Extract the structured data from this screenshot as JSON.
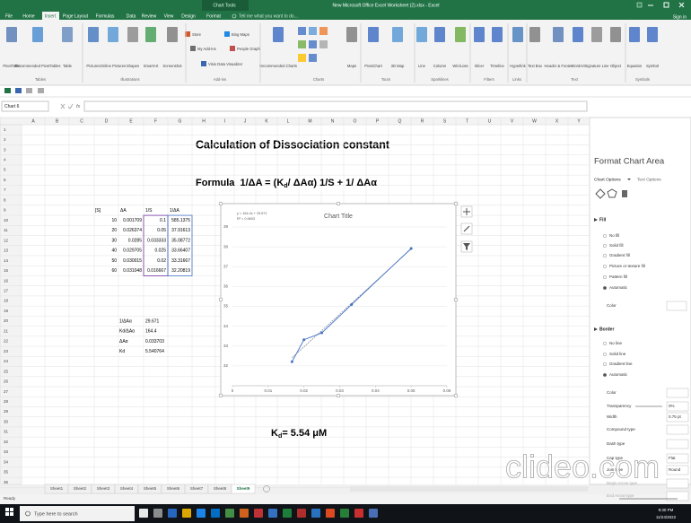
{
  "title_bar": {
    "context": "Chart Tools",
    "title": "New Microsoft Office Excel Worksheet (2).xlsx - Excel"
  },
  "menu": {
    "tabs": [
      "File",
      "Home",
      "Insert",
      "Page Layout",
      "Formulas",
      "Data",
      "Review",
      "View",
      "Design",
      "Format"
    ],
    "tell_me": "Tell me what you want to do...",
    "sign_in": "Sign in"
  },
  "ribbon": {
    "buttons": [
      "PivotTable",
      "Recommended PivotTables",
      "Table",
      "Pictures",
      "Online Pictures",
      "Shapes",
      "SmartArt",
      "Screenshot",
      "Store",
      "My Add-ins",
      "Bing Maps",
      "People Graph",
      "Visio Data Visualizer",
      "Recommended Charts",
      "Maps",
      "PivotChart",
      "3D Map",
      "Line",
      "Column",
      "Win/Loss",
      "Slicer",
      "Timeline",
      "Hyperlink",
      "Text Box",
      "Header & Footer",
      "WordArt",
      "Signature Line",
      "Object",
      "Equation",
      "Symbol"
    ],
    "groups": [
      "Tables",
      "Illustrations",
      "Add-ins",
      "Charts",
      "Tours",
      "Sparklines",
      "Filters",
      "Links",
      "Text",
      "Symbols"
    ]
  },
  "name_box": "Chart 6",
  "formula_icon": "fx",
  "columns": [
    "A",
    "B",
    "C",
    "D",
    "E",
    "F",
    "G",
    "H",
    "I",
    "J",
    "K",
    "L",
    "M",
    "N",
    "O",
    "P",
    "Q",
    "R",
    "S",
    "T",
    "U",
    "V",
    "W",
    "X",
    "Y"
  ],
  "rows": [
    1,
    2,
    3,
    4,
    5,
    6,
    7,
    8,
    9,
    10,
    11,
    12,
    13,
    14,
    15,
    16,
    17,
    18,
    19,
    20,
    21,
    22,
    23,
    24,
    25,
    26,
    27,
    28,
    29,
    30,
    31,
    32,
    33,
    34,
    35,
    36
  ],
  "sheet": {
    "title": "Calculation of Dissociation constant",
    "formula": [
      "Formula  1/ΔA = (K",
      "d",
      "/ ΔAα) 1/S + 1/ ΔAα"
    ],
    "result": [
      "K",
      "d",
      "= 5.54 μM"
    ],
    "table": {
      "header": [
        "[S]",
        "ΔA",
        "1/S",
        "1/ΔA"
      ],
      "rows": [
        [
          10,
          0.001709,
          0.1,
          585.1375
        ],
        [
          20,
          0.026374,
          0.05,
          37.91613
        ],
        [
          30,
          0.0285,
          0.033333,
          35.08772
        ],
        [
          40,
          0.029705,
          0.025,
          33.66407
        ],
        [
          50,
          0.030015,
          0.02,
          33.31667
        ],
        [
          60,
          0.031048,
          0.016667,
          32.20819
        ]
      ]
    },
    "params": [
      [
        "1/ΔAα",
        29.671
      ],
      [
        "Kd/ΔAα",
        164.4
      ],
      [
        "ΔAα",
        0.033703
      ],
      [
        "Kd",
        5.540764
      ]
    ]
  },
  "chart_data": {
    "type": "scatter",
    "title": "Chart Title",
    "x": [
      0.05,
      0.033333,
      0.025,
      0.02,
      0.016667
    ],
    "values": [
      37.91613,
      35.08772,
      33.66407,
      33.31667,
      32.20819
    ],
    "color": "#4472c4",
    "trendline": {
      "label": "y = 164.4x + 29.671",
      "r2": "R² = 0.9603",
      "slope": 164.4,
      "intercept": 29.671,
      "color": "#8a8fa8"
    },
    "xlim": [
      0,
      0.06
    ],
    "xticks": [
      0,
      0.01,
      0.02,
      0.03,
      0.04,
      0.05,
      0.06
    ],
    "ylim": [
      31,
      39
    ],
    "yticks": [
      32,
      33,
      34,
      35,
      36,
      37,
      38,
      39
    ],
    "grid": true
  },
  "pane": {
    "title": "Format Chart Area",
    "tabs": [
      "Chart Options",
      "Text Options"
    ],
    "fill": {
      "heading": "Fill",
      "options": [
        "No fill",
        "Solid fill",
        "Gradient fill",
        "Picture or texture fill",
        "Pattern fill",
        "Automatic"
      ],
      "color": "Color"
    },
    "border": {
      "heading": "Border",
      "options": [
        "No line",
        "Solid line",
        "Gradient line",
        "Automatic"
      ],
      "props": [
        {
          "label": "Color"
        },
        {
          "label": "Transparency",
          "value": "0%"
        },
        {
          "label": "Width",
          "value": "0.75 pt"
        },
        {
          "label": "Compound type"
        },
        {
          "label": "Dash type"
        },
        {
          "label": "Cap type",
          "value": "Flat"
        },
        {
          "label": "Join type",
          "value": "Round"
        },
        {
          "label": "Begin Arrow type"
        },
        {
          "label": "End Arrow type"
        }
      ]
    }
  },
  "sheet_tabs": [
    "Sheet1",
    "Sheet2",
    "Sheet3",
    "Sheet4",
    "Sheet5",
    "Sheet6",
    "Sheet7",
    "Sheet8",
    "Sheet9"
  ],
  "status": "Ready",
  "taskbar": {
    "search": "Type here to search",
    "time": "9:30 PM",
    "date": "11/24/2022"
  },
  "watermark": "clideo.com"
}
